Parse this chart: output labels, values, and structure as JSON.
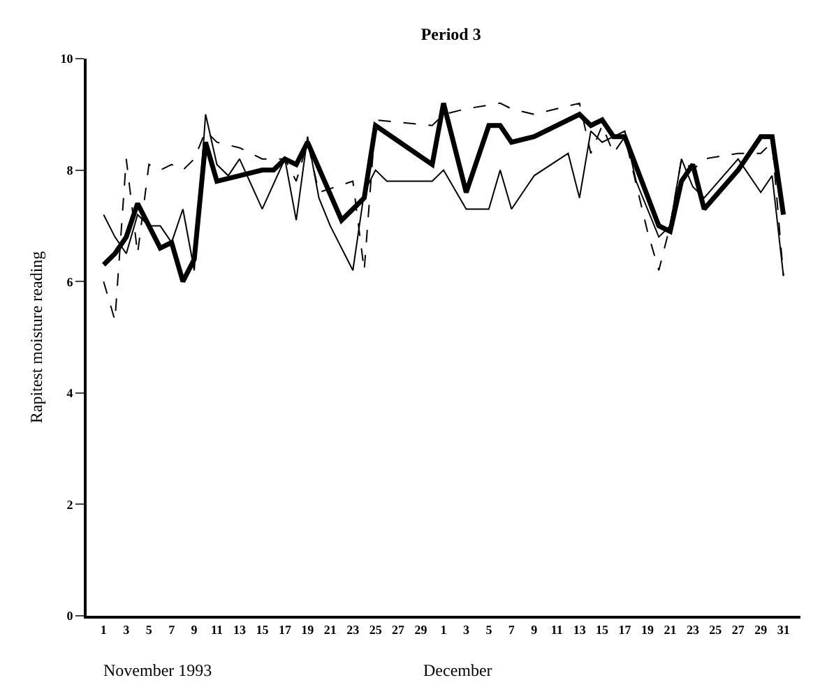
{
  "chart_data": {
    "type": "line",
    "title": "Period 3",
    "ylabel": "Rapitest moisture reading",
    "annotations": [
      "November 1993",
      "December"
    ],
    "xlim": [
      "1993-10-30T12:00",
      "1994-01-01T12:00"
    ],
    "xticks": [
      {
        "value": "1993-11-01",
        "label": "1"
      },
      {
        "value": "1993-11-03",
        "label": "3"
      },
      {
        "value": "1993-11-05",
        "label": "5"
      },
      {
        "value": "1993-11-07",
        "label": "7"
      },
      {
        "value": "1993-11-09",
        "label": "9"
      },
      {
        "value": "1993-11-11",
        "label": "11"
      },
      {
        "value": "1993-11-13",
        "label": "13"
      },
      {
        "value": "1993-11-15",
        "label": "15"
      },
      {
        "value": "1993-11-17",
        "label": "17"
      },
      {
        "value": "1993-11-19",
        "label": "19"
      },
      {
        "value": "1993-11-21",
        "label": "21"
      },
      {
        "value": "1993-11-23",
        "label": "23"
      },
      {
        "value": "1993-11-25",
        "label": "25"
      },
      {
        "value": "1993-11-27",
        "label": "27"
      },
      {
        "value": "1993-11-29",
        "label": "29"
      },
      {
        "value": "1993-12-01",
        "label": "1"
      },
      {
        "value": "1993-12-03",
        "label": "3"
      },
      {
        "value": "1993-12-05",
        "label": "5"
      },
      {
        "value": "1993-12-07",
        "label": "7"
      },
      {
        "value": "1993-12-09",
        "label": "9"
      },
      {
        "value": "1993-12-11",
        "label": "11"
      },
      {
        "value": "1993-12-13",
        "label": "13"
      },
      {
        "value": "1993-12-15",
        "label": "15"
      },
      {
        "value": "1993-12-17",
        "label": "17"
      },
      {
        "value": "1993-12-19",
        "label": "19"
      },
      {
        "value": "1993-12-21",
        "label": "21"
      },
      {
        "value": "1993-12-23",
        "label": "23"
      },
      {
        "value": "1993-12-25",
        "label": "25"
      },
      {
        "value": "1993-12-27",
        "label": "27"
      },
      {
        "value": "1993-12-29",
        "label": "29"
      },
      {
        "value": "1993-12-31",
        "label": "31"
      }
    ],
    "ylim": [
      0,
      10
    ],
    "yticks": [
      0,
      2,
      4,
      6,
      8,
      10
    ],
    "grid": false,
    "marker": "none",
    "series": [
      {
        "color": "#000000",
        "line_style": "solid",
        "x": [
          "1993-11-01",
          "1993-11-02",
          "1993-11-03",
          "1993-11-04",
          "1993-11-05",
          "1993-11-06",
          "1993-11-07",
          "1993-11-08",
          "1993-11-09",
          "1993-11-10",
          "1993-11-11",
          "1993-11-13",
          "1993-11-15",
          "1993-11-16",
          "1993-11-17",
          "1993-11-18",
          "1993-11-19",
          "1993-11-22",
          "1993-11-24",
          "1993-11-25",
          "1993-11-30",
          "1993-12-01",
          "1993-12-03",
          "1993-12-05",
          "1993-12-06",
          "1993-12-07",
          "1993-12-09",
          "1993-12-13",
          "1993-12-14",
          "1993-12-15",
          "1993-12-16",
          "1993-12-17",
          "1993-12-20",
          "1993-12-21",
          "1993-12-22",
          "1993-12-23",
          "1993-12-24",
          "1993-12-27",
          "1993-12-29",
          "1993-12-30",
          "1993-12-31"
        ],
        "values": [
          6.3,
          6.5,
          6.8,
          7.4,
          7.0,
          6.6,
          6.7,
          6.0,
          6.4,
          8.5,
          7.8,
          7.9,
          8.0,
          8.0,
          8.2,
          8.1,
          8.5,
          7.1,
          7.5,
          8.8,
          8.1,
          9.2,
          7.6,
          8.8,
          8.8,
          8.5,
          8.6,
          9.0,
          8.8,
          8.9,
          8.6,
          8.6,
          7.0,
          6.9,
          7.8,
          8.1,
          7.3,
          8.0,
          8.6,
          8.6,
          7.2
        ]
      },
      {
        "color": "#000000",
        "line_style": "solid",
        "x": [
          "1993-11-01",
          "1993-11-02",
          "1993-11-03",
          "1993-11-04",
          "1993-11-05",
          "1993-11-06",
          "1993-11-07",
          "1993-11-08",
          "1993-11-09",
          "1993-11-10",
          "1993-11-11",
          "1993-11-12",
          "1993-11-13",
          "1993-11-15",
          "1993-11-17",
          "1993-11-18",
          "1993-11-19",
          "1993-11-20",
          "1993-11-21",
          "1993-11-23",
          "1993-11-24",
          "1993-11-25",
          "1993-11-26",
          "1993-11-30",
          "1993-12-01",
          "1993-12-03",
          "1993-12-05",
          "1993-12-06",
          "1993-12-07",
          "1993-12-09",
          "1993-12-12",
          "1993-12-13",
          "1993-12-14",
          "1993-12-15",
          "1993-12-16",
          "1993-12-17",
          "1993-12-18",
          "1993-12-20",
          "1993-12-21",
          "1993-12-22",
          "1993-12-23",
          "1993-12-24",
          "1993-12-27",
          "1993-12-29",
          "1993-12-30",
          "1993-12-31"
        ],
        "values": [
          7.2,
          6.8,
          6.5,
          7.2,
          7.0,
          7.0,
          6.7,
          7.3,
          6.2,
          9.0,
          8.1,
          7.9,
          8.2,
          7.3,
          8.2,
          7.1,
          8.6,
          7.5,
          7.0,
          6.2,
          7.6,
          8.0,
          7.8,
          7.8,
          8.0,
          7.3,
          7.3,
          8.0,
          7.3,
          7.9,
          8.3,
          7.5,
          8.7,
          8.5,
          8.6,
          8.7,
          7.8,
          6.8,
          7.0,
          8.2,
          7.7,
          7.5,
          8.2,
          7.6,
          7.9,
          6.1
        ]
      },
      {
        "color": "#000000",
        "line_style": "dashed",
        "x": [
          "1993-11-01",
          "1993-11-02",
          "1993-11-03",
          "1993-11-04",
          "1993-11-05",
          "1993-11-06",
          "1993-11-07",
          "1993-11-08",
          "1993-11-09",
          "1993-11-10",
          "1993-11-11",
          "1993-11-13",
          "1993-11-15",
          "1993-11-17",
          "1993-11-18",
          "1993-11-19",
          "1993-11-20",
          "1993-11-23",
          "1993-11-24",
          "1993-11-25",
          "1993-11-30",
          "1993-12-01",
          "1993-12-03",
          "1993-12-06",
          "1993-12-07",
          "1993-12-09",
          "1993-12-11",
          "1993-12-13",
          "1993-12-14",
          "1993-12-15",
          "1993-12-16",
          "1993-12-17",
          "1993-12-19",
          "1993-12-20",
          "1993-12-21",
          "1993-12-22",
          "1993-12-23",
          "1993-12-24",
          "1993-12-27",
          "1993-12-29",
          "1993-12-30",
          "1993-12-31"
        ],
        "values": [
          6.0,
          5.3,
          8.2,
          6.5,
          8.1,
          8.0,
          8.1,
          8.0,
          8.2,
          8.7,
          8.5,
          8.4,
          8.2,
          8.2,
          7.8,
          8.5,
          7.6,
          7.8,
          6.2,
          8.9,
          8.8,
          9.0,
          9.1,
          9.2,
          9.1,
          9.0,
          9.1,
          9.2,
          8.3,
          8.8,
          8.3,
          8.6,
          6.9,
          6.2,
          7.0,
          8.2,
          8.0,
          8.2,
          8.3,
          8.3,
          8.5,
          6.1
        ]
      }
    ]
  }
}
